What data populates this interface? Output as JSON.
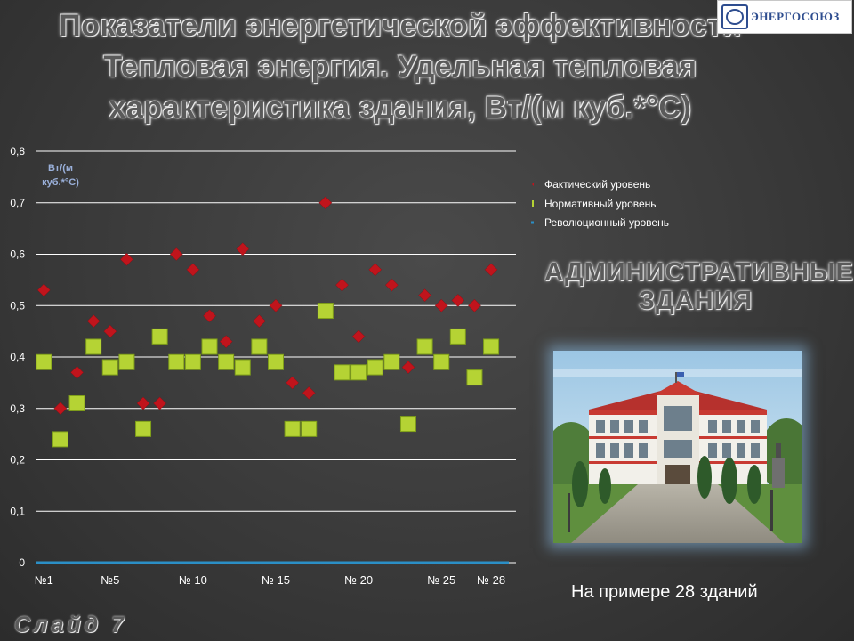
{
  "header": {
    "title_lines": [
      "Показатели энергетической эффективности",
      "Тепловая энергия. Удельная тепловая",
      "характеристика здания, Вт/(м куб.*°С)"
    ]
  },
  "logo": {
    "text": "ЭНЕРГОСОЮЗ",
    "icon": "energosoyuz-logo-mark"
  },
  "chart_data": {
    "type": "scatter",
    "yunit_label_lines": [
      "Вт/(м",
      "куб.*°С)"
    ],
    "ylim": [
      0,
      0.8
    ],
    "yticks": [
      "0,8",
      "0,7",
      "0,6",
      "0,5",
      "0,4",
      "0,3",
      "0,2",
      "0,1",
      "0"
    ],
    "ytick_values": [
      0.8,
      0.7,
      0.6,
      0.5,
      0.4,
      0.3,
      0.2,
      0.1,
      0
    ],
    "x": [
      1,
      2,
      3,
      4,
      5,
      6,
      7,
      8,
      9,
      10,
      11,
      12,
      13,
      14,
      15,
      16,
      17,
      18,
      19,
      20,
      21,
      22,
      23,
      24,
      25,
      26,
      27,
      28,
      29
    ],
    "xlim": [
      0.5,
      29.5
    ],
    "xticks": [
      {
        "x": 1,
        "label": "№1"
      },
      {
        "x": 5,
        "label": "№5"
      },
      {
        "x": 10,
        "label": "№ 10"
      },
      {
        "x": 15,
        "label": "№ 15"
      },
      {
        "x": 20,
        "label": "№ 20"
      },
      {
        "x": 25,
        "label": "№ 25"
      },
      {
        "x": 28,
        "label": "№ 28"
      }
    ],
    "grid": true,
    "legend_position": "right",
    "series": [
      {
        "name": "Фактический уровень",
        "marker": "diamond",
        "color": "#c0141c",
        "values": [
          0.53,
          0.3,
          0.37,
          0.47,
          0.45,
          0.59,
          0.31,
          0.31,
          0.6,
          0.57,
          0.48,
          0.43,
          0.61,
          0.47,
          0.5,
          0.35,
          0.33,
          0.7,
          0.54,
          0.44,
          0.57,
          0.54,
          0.38,
          0.52,
          0.5,
          0.51,
          0.5,
          0.57,
          null
        ]
      },
      {
        "name": "Нормативный уровень",
        "marker": "square",
        "color": "#b5d334",
        "values": [
          0.39,
          0.24,
          0.31,
          0.42,
          0.38,
          0.39,
          0.26,
          0.44,
          0.39,
          0.39,
          0.42,
          0.39,
          0.38,
          0.42,
          0.39,
          0.26,
          0.26,
          0.49,
          0.37,
          0.37,
          0.38,
          0.39,
          0.27,
          0.42,
          0.39,
          0.44,
          0.36,
          0.42,
          null
        ]
      },
      {
        "name": "Революционный уровень",
        "marker": "line",
        "color": "#2b8fc6",
        "values": [
          0,
          0,
          0,
          0,
          0,
          0,
          0,
          0,
          0,
          0,
          0,
          0,
          0,
          0,
          0,
          0,
          0,
          0,
          0,
          0,
          0,
          0,
          0,
          0,
          0,
          0,
          0,
          0,
          0
        ]
      }
    ]
  },
  "section": {
    "title_lines": [
      "АДМИНИСТРАТИВНЫЕ",
      "ЗДАНИЯ"
    ]
  },
  "photo": {
    "icon": "administrative-building-photo"
  },
  "caption": "На примере 28 зданий",
  "footer": {
    "slide_label": "Слайд 7"
  }
}
